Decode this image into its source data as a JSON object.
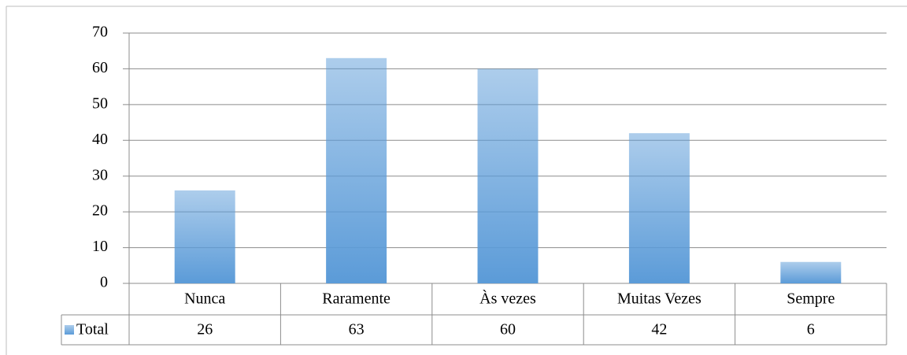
{
  "chart_data": {
    "type": "bar",
    "categories": [
      "Nunca",
      "Raramente",
      "Às vezes",
      "Muitas Vezes",
      "Sempre"
    ],
    "series": [
      {
        "name": "Total",
        "color": "#5b9bd8",
        "values": [
          26,
          63,
          60,
          42,
          6
        ]
      }
    ],
    "ylim": [
      0,
      70
    ],
    "yticks": [
      0,
      10,
      20,
      30,
      40,
      50,
      60,
      70
    ],
    "grid": true
  }
}
